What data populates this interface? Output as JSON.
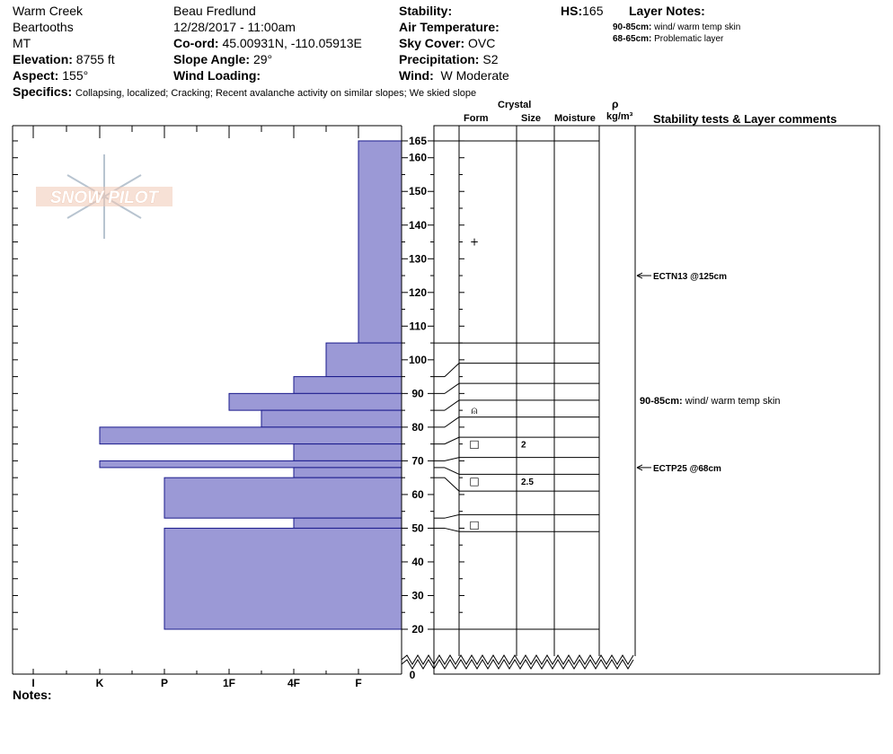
{
  "header": {
    "location": "Warm Creek",
    "range": "Beartooths",
    "state": "MT",
    "elevation_label": "Elevation:",
    "elevation": "8755 ft",
    "aspect_label": "Aspect:",
    "aspect": "155°",
    "observer": "Beau  Fredlund",
    "datetime": "12/28/2017 - 11:00am",
    "coord_label": "Co-ord:",
    "coord": "45.00931N, -110.05913E",
    "slope_label": "Slope Angle:",
    "slope": "29°",
    "wind_loading_label": "Wind Loading:",
    "wind_loading": "",
    "stability_label": "Stability:",
    "stability": "",
    "air_temp_label": "Air Temperature:",
    "air_temp": "",
    "sky_label": "Sky Cover:",
    "sky": "OVC",
    "precip_label": "Precipitation:",
    "precip": "S2",
    "wind_label": "Wind:",
    "wind": "W Moderate",
    "hs_label": "HS:",
    "hs": "165",
    "layer_notes_label": "Layer Notes:",
    "layer_notes": [
      {
        "range": "90-85cm:",
        "text": "wind/ warm temp skin"
      },
      {
        "range": "68-65cm:",
        "text": "Problematic layer"
      }
    ],
    "specifics_label": "Specifics:",
    "specifics": "Collapsing, localized;  Cracking;  Recent avalanche activity on similar slopes;  We skied slope"
  },
  "columns": {
    "crystal": "Crystal",
    "form": "Form",
    "size": "Size",
    "moisture": "Moisture",
    "rho": "ρ",
    "density": "kg/m³",
    "comments": "Stability tests & Layer comments"
  },
  "logo_text": "SNOW PILOT",
  "notes_label": "Notes:",
  "colors": {
    "hardness_fill": "#9b99d6",
    "hardness_stroke": "#1a1a8c",
    "logo_fill": "#f0c8b4",
    "logo_flake": "#b8c4d0"
  },
  "chart_data": {
    "type": "snow-profile",
    "hs_cm": 165,
    "y_unit": "cm",
    "y_range": [
      0,
      165
    ],
    "y_ticks": [
      20,
      30,
      40,
      50,
      60,
      70,
      80,
      90,
      100,
      110,
      120,
      130,
      140,
      150,
      160,
      165
    ],
    "y_break": [
      0,
      20
    ],
    "hardness_scale": [
      "I",
      "K",
      "P",
      "1F",
      "4F",
      "F"
    ],
    "hardness_layers": [
      {
        "top": 165,
        "bottom": 105,
        "hardness": "F"
      },
      {
        "top": 105,
        "bottom": 95,
        "hardness": "F-/4F+"
      },
      {
        "top": 95,
        "bottom": 90,
        "hardness": "4F"
      },
      {
        "top": 90,
        "bottom": 85,
        "hardness": "1F"
      },
      {
        "top": 85,
        "bottom": 80,
        "hardness": "4F-/1F+"
      },
      {
        "top": 80,
        "bottom": 75,
        "hardness": "K"
      },
      {
        "top": 75,
        "bottom": 70,
        "hardness": "4F"
      },
      {
        "top": 70,
        "bottom": 68,
        "hardness": "K"
      },
      {
        "top": 68,
        "bottom": 65,
        "hardness": "4F"
      },
      {
        "top": 65,
        "bottom": 53,
        "hardness": "P"
      },
      {
        "top": 53,
        "bottom": 50,
        "hardness": "4F"
      },
      {
        "top": 50,
        "bottom": 20,
        "hardness": "P"
      }
    ],
    "layer_lines_cm": [
      165,
      105,
      99,
      93,
      88,
      83,
      77,
      71,
      66,
      61,
      54,
      49,
      20
    ],
    "crystals": [
      {
        "depth": 135,
        "symbol": "+",
        "size": ""
      },
      {
        "depth": 85,
        "symbol": "⍝",
        "size": ""
      },
      {
        "depth": 75,
        "symbol": "□",
        "size": "2"
      },
      {
        "depth": 64,
        "symbol": "□",
        "size": "2.5"
      },
      {
        "depth": 51,
        "symbol": "□",
        "size": ""
      }
    ],
    "comments": [
      {
        "depth": 125,
        "text": "ECTN13 @125cm",
        "arrow": true
      },
      {
        "depth": 88,
        "range": "90-85cm:",
        "text": "wind/ warm temp skin",
        "arrow": false
      },
      {
        "depth": 68,
        "text": "ECTP25 @68cm",
        "arrow": true
      }
    ]
  }
}
